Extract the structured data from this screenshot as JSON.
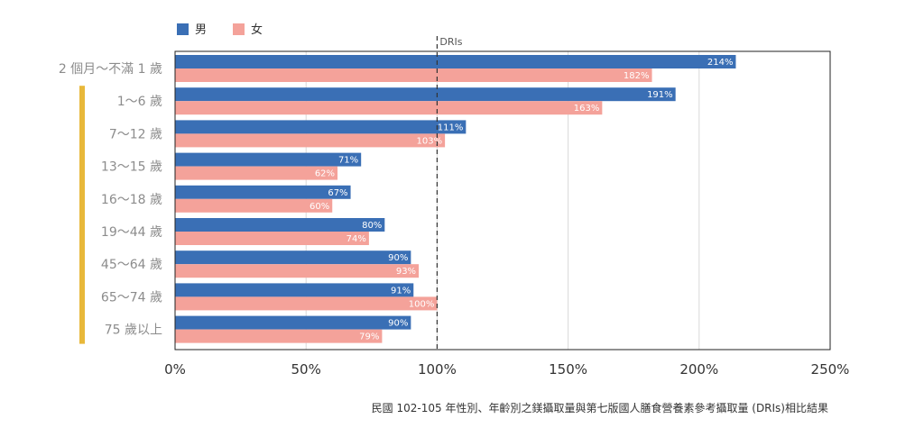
{
  "chart_data": {
    "type": "bar",
    "orientation": "horizontal",
    "categories": [
      "2 個月～不滿 1 歲",
      "1～6 歲",
      "7～12 歲",
      "13～15 歲",
      "16～18 歲",
      "19～44 歲",
      "45～64 歲",
      "65～74 歲",
      "75 歲以上"
    ],
    "series": [
      {
        "name": "男",
        "color": "#3a6fb5",
        "values": [
          214,
          191,
          111,
          71,
          67,
          80,
          90,
          91,
          90
        ],
        "labels": [
          "214%",
          "191%",
          "111%",
          "71%",
          "67%",
          "80%",
          "90%",
          "91%",
          "90%"
        ]
      },
      {
        "name": "女",
        "color": "#f4a29a",
        "values": [
          182,
          163,
          103,
          62,
          60,
          74,
          93,
          100,
          79
        ],
        "labels": [
          "182%",
          "163%",
          "103%",
          "62%",
          "60%",
          "74%",
          "93%",
          "100%",
          "79%"
        ]
      }
    ],
    "xlim": [
      0,
      250
    ],
    "xticks": [
      0,
      50,
      100,
      150,
      200,
      250
    ],
    "xtick_labels": [
      "0%",
      "50%",
      "100%",
      "150%",
      "200%",
      "250%"
    ],
    "reference_line": {
      "value": 100,
      "label": "DRIs",
      "style": "dashed"
    },
    "legend": {
      "placement": "top-left"
    },
    "grid": true,
    "bracket": {
      "from_category": 1,
      "to_category": 8,
      "color": "#e8b83a"
    },
    "caption": "民國 102-105 年性別、年齡別之鎂攝取量與第七版國人膳食營養素參考攝取量 (DRIs)相比結果"
  }
}
